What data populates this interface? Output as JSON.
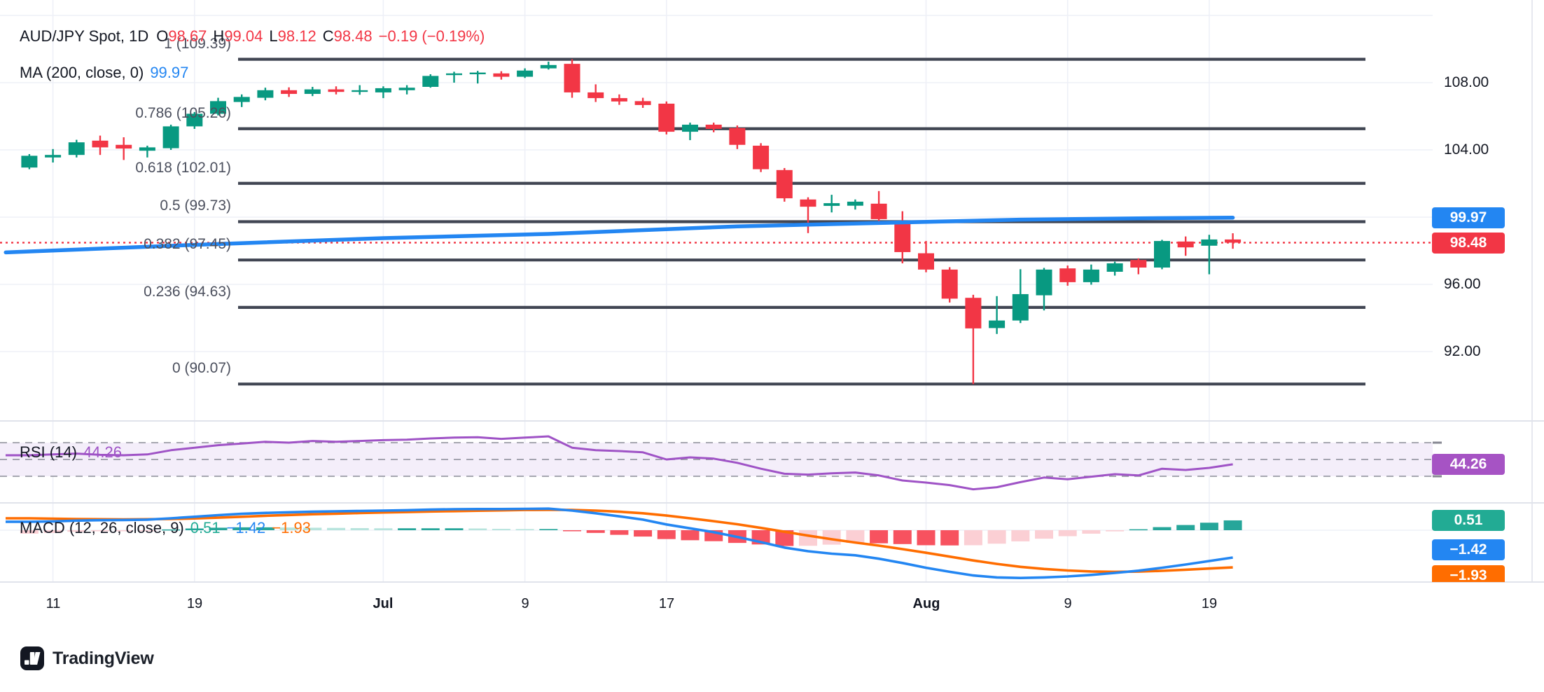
{
  "header": {
    "title": "AUD/JPY Spot, 1D",
    "ohlc": {
      "o_label": "O",
      "o": "98.67",
      "h_label": "H",
      "h": "99.04",
      "l_label": "L",
      "l": "98.12",
      "c_label": "C",
      "c": "98.48",
      "change": "−0.19 (−0.19%)"
    }
  },
  "ma_legend": {
    "label": "MA (200, close, 0)",
    "value": "99.97"
  },
  "rsi_legend": {
    "label": "RSI (14)",
    "value": "44.26"
  },
  "macd_legend": {
    "label": "MACD (12, 26, close, 9)",
    "hist": "0.51",
    "macd": "−1.42",
    "signal": "−1.93"
  },
  "badges": {
    "ma": "99.97",
    "price": "98.48",
    "rsi": "44.26",
    "macd_hist": "0.51",
    "macd_line": "−1.42",
    "macd_signal": "−1.93"
  },
  "watermark": {
    "logo_text": "TradingView"
  },
  "colors": {
    "up": "#089981",
    "down": "#f23645",
    "ma_blue": "#2386f2",
    "signal_orange": "#ff6d00",
    "rsi_purple": "#9f53c6",
    "hist_pos": "#26a69a",
    "hist_pos_weak": "#b7e4dd",
    "hist_neg": "#f7525f",
    "hist_neg_weak": "#fbcfd4",
    "fib_line": "#414653",
    "grid": "#eef0f7",
    "separator": "#e0e3eb",
    "dash_gray": "#787b86",
    "badge_teal": "#22ab94",
    "badge_purple": "#a653c4",
    "text": "#131722"
  },
  "chart_data": {
    "type": "candlestick",
    "symbol": "AUD/JPY Spot",
    "interval": "1D",
    "last_price": 98.48,
    "ohlc_last": {
      "open": 98.67,
      "high": 99.04,
      "low": 98.12,
      "close": 98.48,
      "change": -0.19,
      "change_pct": -0.19
    },
    "price_axis": {
      "visible_labels": [
        {
          "label": "108.00",
          "price": 108
        },
        {
          "label": "104.00",
          "price": 104
        },
        {
          "label": "96.00",
          "price": 96
        },
        {
          "label": "92.00",
          "price": 92
        }
      ],
      "gridline_prices": [
        112,
        108,
        104,
        100,
        96,
        92
      ]
    },
    "time_axis": [
      {
        "label": "11",
        "index": 1,
        "major": false
      },
      {
        "label": "19",
        "index": 7,
        "major": false
      },
      {
        "label": "Jul",
        "index": 15,
        "major": true
      },
      {
        "label": "9",
        "index": 21,
        "major": false
      },
      {
        "label": "17",
        "index": 27,
        "major": false
      },
      {
        "label": "Aug",
        "index": 38,
        "major": true
      },
      {
        "label": "9",
        "index": 44,
        "major": false
      },
      {
        "label": "19",
        "index": 50,
        "major": false
      }
    ],
    "fibonacci_retracement": [
      {
        "level": "1",
        "price": 109.39,
        "label": "1 (109.39)"
      },
      {
        "level": "0.786",
        "price": 105.26,
        "label": "0.786 (105.26)"
      },
      {
        "level": "0.618",
        "price": 102.01,
        "label": "0.618 (102.01)"
      },
      {
        "level": "0.5",
        "price": 99.73,
        "label": "0.5 (99.73)"
      },
      {
        "level": "0.382",
        "price": 97.45,
        "label": "0.382 (97.45)"
      },
      {
        "level": "0.236",
        "price": 94.63,
        "label": "0.236 (94.63)"
      },
      {
        "level": "0",
        "price": 90.07,
        "label": "0 (90.07)"
      }
    ],
    "ma200": {
      "label": "MA (200, close, 0)",
      "value": 99.97,
      "points": [
        [
          -1,
          97.9
        ],
        [
          7,
          98.35
        ],
        [
          15,
          98.75
        ],
        [
          22,
          99.0
        ],
        [
          30,
          99.45
        ],
        [
          36,
          99.65
        ],
        [
          42,
          99.85
        ],
        [
          47,
          99.93
        ],
        [
          51,
          99.97
        ]
      ]
    },
    "candles": [
      {
        "date": "Jun 10",
        "o": 102.95,
        "h": 103.75,
        "l": 102.85,
        "c": 103.65
      },
      {
        "date": "Jun 11",
        "o": 103.55,
        "h": 104.05,
        "l": 103.25,
        "c": 103.7
      },
      {
        "date": "Jun 12",
        "o": 103.7,
        "h": 104.6,
        "l": 103.55,
        "c": 104.45
      },
      {
        "date": "Jun 13",
        "o": 104.55,
        "h": 104.85,
        "l": 103.7,
        "c": 104.15
      },
      {
        "date": "Jun 14",
        "o": 104.3,
        "h": 104.75,
        "l": 103.4,
        "c": 104.08
      },
      {
        "date": "Jun 17",
        "o": 103.95,
        "h": 104.25,
        "l": 103.55,
        "c": 104.15
      },
      {
        "date": "Jun 18",
        "o": 104.1,
        "h": 105.5,
        "l": 104.0,
        "c": 105.4
      },
      {
        "date": "Jun 19",
        "o": 105.4,
        "h": 106.25,
        "l": 105.25,
        "c": 106.15
      },
      {
        "date": "Jun 20",
        "o": 106.15,
        "h": 107.1,
        "l": 106.05,
        "c": 106.9
      },
      {
        "date": "Jun 21",
        "o": 106.85,
        "h": 107.3,
        "l": 106.55,
        "c": 107.15
      },
      {
        "date": "Jun 24",
        "o": 107.1,
        "h": 107.7,
        "l": 106.95,
        "c": 107.55
      },
      {
        "date": "Jun 25",
        "o": 107.55,
        "h": 107.72,
        "l": 107.15,
        "c": 107.33
      },
      {
        "date": "Jun 26",
        "o": 107.33,
        "h": 107.75,
        "l": 107.2,
        "c": 107.6
      },
      {
        "date": "Jun 27",
        "o": 107.6,
        "h": 107.78,
        "l": 107.3,
        "c": 107.45
      },
      {
        "date": "Jun 28",
        "o": 107.45,
        "h": 107.85,
        "l": 107.28,
        "c": 107.55
      },
      {
        "date": "Jul 1",
        "o": 107.42,
        "h": 107.78,
        "l": 107.08,
        "c": 107.67
      },
      {
        "date": "Jul 2",
        "o": 107.55,
        "h": 107.85,
        "l": 107.3,
        "c": 107.7
      },
      {
        "date": "Jul 3",
        "o": 107.75,
        "h": 108.5,
        "l": 107.7,
        "c": 108.4
      },
      {
        "date": "Jul 4",
        "o": 108.45,
        "h": 108.65,
        "l": 108.0,
        "c": 108.55
      },
      {
        "date": "Jul 5",
        "o": 108.5,
        "h": 108.7,
        "l": 107.95,
        "c": 108.6
      },
      {
        "date": "Jul 8",
        "o": 108.55,
        "h": 108.68,
        "l": 108.18,
        "c": 108.35
      },
      {
        "date": "Jul 9",
        "o": 108.35,
        "h": 108.85,
        "l": 108.28,
        "c": 108.72
      },
      {
        "date": "Jul 10",
        "o": 108.85,
        "h": 109.25,
        "l": 108.78,
        "c": 109.05
      },
      {
        "date": "Jul 11",
        "o": 109.12,
        "h": 109.39,
        "l": 107.1,
        "c": 107.42
      },
      {
        "date": "Jul 12",
        "o": 107.42,
        "h": 107.9,
        "l": 106.85,
        "c": 107.08
      },
      {
        "date": "Jul 15",
        "o": 107.08,
        "h": 107.3,
        "l": 106.68,
        "c": 106.88
      },
      {
        "date": "Jul 16",
        "o": 106.9,
        "h": 107.1,
        "l": 106.5,
        "c": 106.67
      },
      {
        "date": "Jul 17",
        "o": 106.75,
        "h": 106.88,
        "l": 104.92,
        "c": 105.08
      },
      {
        "date": "Jul 18",
        "o": 105.08,
        "h": 105.62,
        "l": 104.58,
        "c": 105.5
      },
      {
        "date": "Jul 19",
        "o": 105.5,
        "h": 105.62,
        "l": 105.05,
        "c": 105.25
      },
      {
        "date": "Jul 22",
        "o": 105.3,
        "h": 105.45,
        "l": 104.05,
        "c": 104.3
      },
      {
        "date": "Jul 23",
        "o": 104.25,
        "h": 104.4,
        "l": 102.68,
        "c": 102.85
      },
      {
        "date": "Jul 24",
        "o": 102.8,
        "h": 102.92,
        "l": 100.92,
        "c": 101.12
      },
      {
        "date": "Jul 25",
        "o": 101.05,
        "h": 101.18,
        "l": 99.05,
        "c": 100.62
      },
      {
        "date": "Jul 26",
        "o": 100.67,
        "h": 101.33,
        "l": 100.28,
        "c": 100.83
      },
      {
        "date": "Jul 29",
        "o": 100.68,
        "h": 101.05,
        "l": 100.45,
        "c": 100.92
      },
      {
        "date": "Jul 30",
        "o": 100.8,
        "h": 101.55,
        "l": 99.72,
        "c": 99.88
      },
      {
        "date": "Jul 31",
        "o": 99.67,
        "h": 100.35,
        "l": 97.25,
        "c": 97.92
      },
      {
        "date": "Aug 1",
        "o": 97.85,
        "h": 98.58,
        "l": 96.72,
        "c": 96.88
      },
      {
        "date": "Aug 2",
        "o": 96.88,
        "h": 97.02,
        "l": 94.92,
        "c": 95.15
      },
      {
        "date": "Aug 5",
        "o": 95.2,
        "h": 95.38,
        "l": 90.07,
        "c": 93.38
      },
      {
        "date": "Aug 6",
        "o": 93.4,
        "h": 95.3,
        "l": 93.05,
        "c": 93.85
      },
      {
        "date": "Aug 7",
        "o": 93.85,
        "h": 96.9,
        "l": 93.7,
        "c": 95.42
      },
      {
        "date": "Aug 8",
        "o": 95.35,
        "h": 96.98,
        "l": 94.45,
        "c": 96.88
      },
      {
        "date": "Aug 9",
        "o": 96.95,
        "h": 97.12,
        "l": 95.92,
        "c": 96.13
      },
      {
        "date": "Aug 12",
        "o": 96.13,
        "h": 97.18,
        "l": 95.98,
        "c": 96.88
      },
      {
        "date": "Aug 13",
        "o": 96.75,
        "h": 97.35,
        "l": 96.52,
        "c": 97.25
      },
      {
        "date": "Aug 14",
        "o": 97.45,
        "h": 97.55,
        "l": 96.6,
        "c": 97.0
      },
      {
        "date": "Aug 15",
        "o": 97.0,
        "h": 98.65,
        "l": 96.9,
        "c": 98.58
      },
      {
        "date": "Aug 16",
        "o": 98.55,
        "h": 98.85,
        "l": 97.7,
        "c": 98.2
      },
      {
        "date": "Aug 19",
        "o": 98.3,
        "h": 98.95,
        "l": 96.6,
        "c": 98.67
      },
      {
        "date": "Aug 20",
        "o": 98.67,
        "h": 99.04,
        "l": 98.12,
        "c": 98.48
      }
    ],
    "rsi": {
      "label": "RSI (14)",
      "value": 44.26,
      "bands": [
        70,
        50,
        30
      ],
      "values": [
        55,
        56,
        57,
        55.5,
        55,
        56,
        61,
        64,
        67,
        69,
        71,
        70,
        72,
        71,
        72,
        73,
        73.5,
        75,
        76,
        76.5,
        74.5,
        76,
        77.5,
        64,
        61,
        60,
        58.5,
        50,
        52.5,
        51,
        46,
        39,
        33,
        32,
        33.5,
        34.5,
        31,
        25,
        22.5,
        19.5,
        14.5,
        17,
        23,
        28.5,
        26.5,
        29.5,
        32.5,
        31,
        39,
        37.5,
        40,
        44.26
      ]
    },
    "macd": {
      "label": "MACD (12, 26, close, 9)",
      "histogram_last": 0.51,
      "macd_last": -1.42,
      "signal_last": -1.93,
      "macd_series": [
        0.44,
        0.46,
        0.5,
        0.52,
        0.53,
        0.55,
        0.62,
        0.7,
        0.78,
        0.85,
        0.9,
        0.93,
        0.96,
        0.98,
        1.0,
        1.02,
        1.04,
        1.07,
        1.09,
        1.1,
        1.1,
        1.11,
        1.12,
        1.02,
        0.88,
        0.72,
        0.55,
        0.3,
        0.1,
        -0.1,
        -0.35,
        -0.62,
        -0.9,
        -1.09,
        -1.22,
        -1.3,
        -1.48,
        -1.7,
        -1.95,
        -2.16,
        -2.35,
        -2.45,
        -2.48,
        -2.45,
        -2.4,
        -2.32,
        -2.22,
        -2.1,
        -1.95,
        -1.78,
        -1.6,
        -1.42
      ],
      "signal_series": [
        0.62,
        0.6,
        0.58,
        0.57,
        0.56,
        0.57,
        0.58,
        0.61,
        0.65,
        0.7,
        0.75,
        0.79,
        0.83,
        0.86,
        0.89,
        0.92,
        0.94,
        0.97,
        0.99,
        1.01,
        1.03,
        1.05,
        1.06,
        1.05,
        1.02,
        0.96,
        0.88,
        0.76,
        0.62,
        0.47,
        0.31,
        0.12,
        -0.08,
        -0.28,
        -0.47,
        -0.64,
        -0.8,
        -0.98,
        -1.17,
        -1.37,
        -1.57,
        -1.75,
        -1.9,
        -2.01,
        -2.09,
        -2.14,
        -2.16,
        -2.15,
        -2.11,
        -2.05,
        -1.99,
        -1.93
      ]
    }
  }
}
